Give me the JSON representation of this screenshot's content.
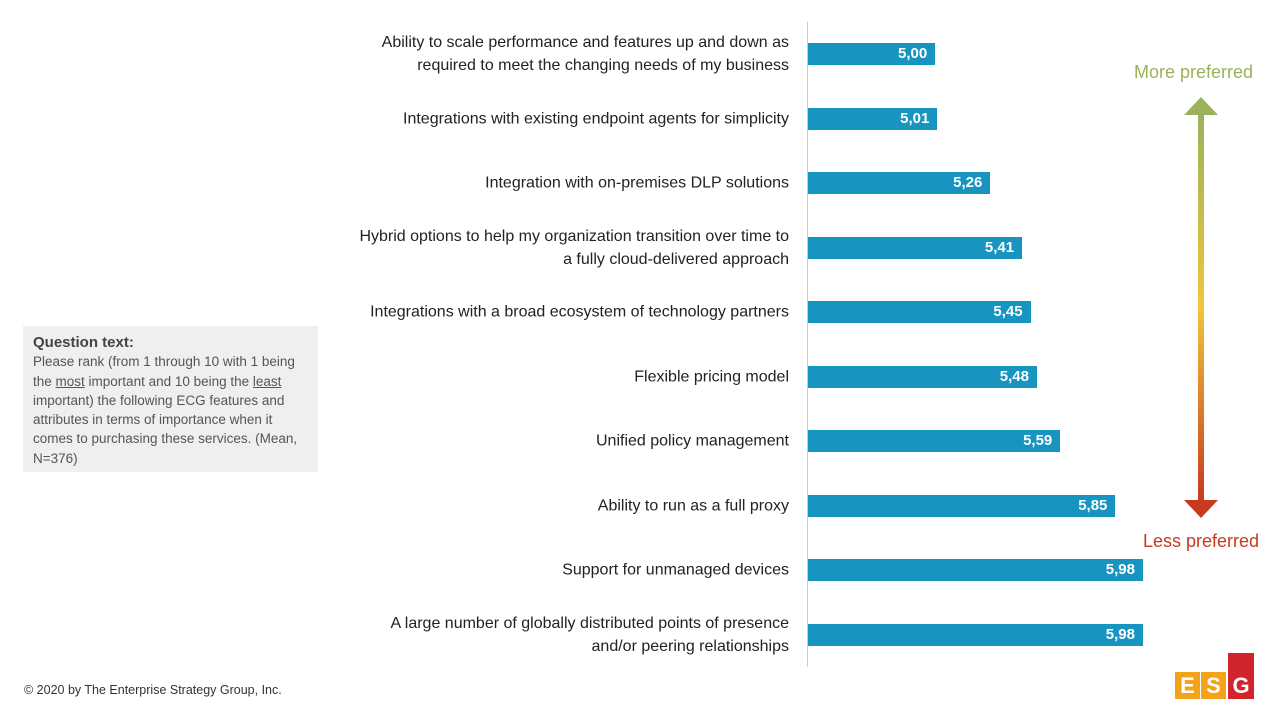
{
  "chart_data": {
    "type": "bar",
    "orientation": "horizontal",
    "categories": [
      "Ability to scale performance and features up and down as required to meet the changing needs of my business",
      "Integrations with existing endpoint agents for simplicity",
      "Integration with on-premises DLP solutions",
      "Hybrid options to help my organization transition over time to a fully cloud-delivered approach",
      "Integrations with a broad ecosystem of technology partners",
      "Flexible pricing model",
      "Unified policy management",
      "Ability to run as a full proxy",
      "Support for unmanaged devices",
      "A large number of globally distributed points of presence and/or peering relationships"
    ],
    "values": [
      5.0,
      5.01,
      5.26,
      5.41,
      5.45,
      5.48,
      5.59,
      5.85,
      5.98,
      5.98
    ],
    "value_labels": [
      "5,00",
      "5,01",
      "5,26",
      "5,41",
      "5,45",
      "5,48",
      "5,59",
      "5,85",
      "5,98",
      "5,98"
    ],
    "color": "#1794c0",
    "xlim": [
      4.4,
      6.0
    ],
    "annotations": {
      "top": "More preferred",
      "bottom": "Less preferred"
    }
  },
  "note": {
    "title": "Question text:",
    "text": [
      "Please rank (from 1 through 10 with 1 being the ",
      "most",
      " important and 10 being the ",
      "least",
      " important) the following ECG features and attributes in terms of importance when it comes to purchasing these services. (Mean, N=376)"
    ]
  },
  "footer": "© 2020 by The Enterprise Strategy Group, Inc.",
  "logo": [
    "E",
    "S",
    "G"
  ]
}
